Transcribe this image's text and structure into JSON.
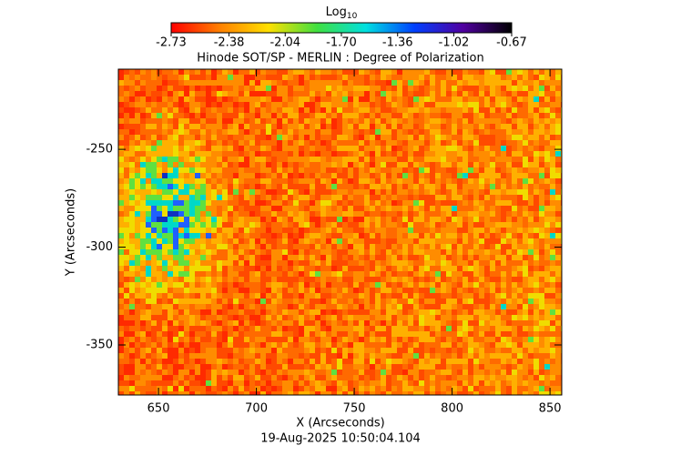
{
  "chart_data": {
    "type": "image",
    "title": "Hinode SOT/SP - MERLIN : Degree of Polarization",
    "colorbar_label": "Log",
    "colorbar_label_sub": "10",
    "x_label": "X (Arcseconds)",
    "y_label": "Y (Arcseconds)",
    "footer": "19-Aug-2025 10:50:04.104",
    "xlim": [
      629.5,
      856
    ],
    "xticks": [
      650,
      700,
      750,
      800,
      850
    ],
    "ylim": [
      -375.6,
      -209
    ],
    "yticks": [
      -350,
      -300,
      -250
    ],
    "clim": [
      -2.73,
      -0.67
    ],
    "cticks": [
      -2.73,
      -2.38,
      -2.04,
      {
        "value": -1.7,
        "label": "-1.70"
      },
      -1.36,
      -1.02,
      -0.67
    ],
    "colormap": [
      "#ff0000",
      "#ff8000",
      "#ffe000",
      "#40e040",
      "#00e0e0",
      "#0040ff",
      "#5000a0",
      "#000000"
    ]
  }
}
